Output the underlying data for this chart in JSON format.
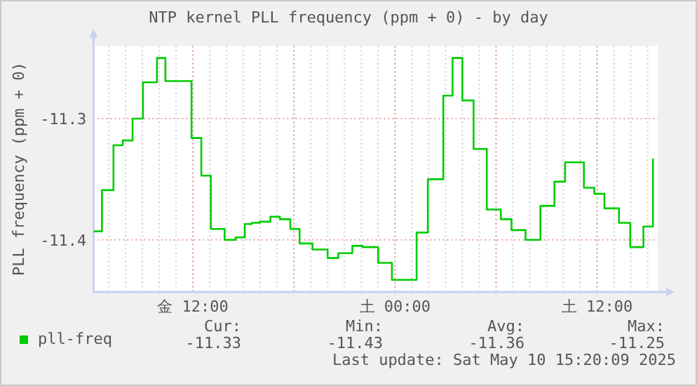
{
  "chart_data": {
    "type": "step",
    "title": "NTP kernel PLL frequency (ppm + 0) - by day",
    "ylabel": "PLL frequency (ppm + 0)",
    "x": [
      "2025-05-09T06:07",
      "2025-05-09T06:36",
      "2025-05-09T07:17",
      "2025-05-09T07:50",
      "2025-05-09T08:25",
      "2025-05-09T09:02",
      "2025-05-09T09:52",
      "2025-05-09T10:22",
      "2025-05-09T11:55",
      "2025-05-09T12:30",
      "2025-05-09T13:04",
      "2025-05-09T13:53",
      "2025-05-09T14:32",
      "2025-05-09T15:05",
      "2025-05-09T15:30",
      "2025-05-09T15:58",
      "2025-05-09T16:36",
      "2025-05-09T17:10",
      "2025-05-09T17:47",
      "2025-05-09T18:20",
      "2025-05-09T19:06",
      "2025-05-09T20:00",
      "2025-05-09T20:38",
      "2025-05-09T21:28",
      "2025-05-09T22:05",
      "2025-05-09T23:00",
      "2025-05-09T23:49",
      "2025-05-10T01:17",
      "2025-05-10T01:57",
      "2025-05-10T02:52",
      "2025-05-10T03:25",
      "2025-05-10T04:00",
      "2025-05-10T04:40",
      "2025-05-10T05:27",
      "2025-05-10T06:17",
      "2025-05-10T06:55",
      "2025-05-10T07:45",
      "2025-05-10T08:38",
      "2025-05-10T09:28",
      "2025-05-10T10:06",
      "2025-05-10T11:13",
      "2025-05-10T11:50",
      "2025-05-10T12:26",
      "2025-05-10T13:18",
      "2025-05-10T13:58",
      "2025-05-10T14:45",
      "2025-05-10T15:19"
    ],
    "series": [
      {
        "name": "pll-freq",
        "color": "#00cc00",
        "values": [
          -11.393,
          -11.359,
          -11.322,
          -11.318,
          -11.3,
          -11.27,
          -11.25,
          -11.269,
          -11.316,
          -11.347,
          -11.391,
          -11.4,
          -11.398,
          -11.387,
          -11.386,
          -11.385,
          -11.381,
          -11.383,
          -11.391,
          -11.403,
          -11.408,
          -11.415,
          -11.411,
          -11.405,
          -11.406,
          -11.419,
          -11.433,
          -11.394,
          -11.35,
          -11.281,
          -11.25,
          -11.285,
          -11.325,
          -11.375,
          -11.383,
          -11.392,
          -11.4,
          -11.372,
          -11.352,
          -11.336,
          -11.357,
          -11.362,
          -11.374,
          -11.386,
          -11.406,
          -11.389,
          -11.333
        ]
      }
    ],
    "xlim": [
      "2025-05-09T06:06",
      "2025-05-10T15:36"
    ],
    "ylim": [
      -11.443,
      -11.24
    ],
    "xticks": [
      {
        "value": "2025-05-09T12:00",
        "label": "金 12:00"
      },
      {
        "value": "2025-05-09T18:00",
        "label": null
      },
      {
        "value": "2025-05-10T00:00",
        "label": "土 00:00"
      },
      {
        "value": "2025-05-10T06:00",
        "label": null
      },
      {
        "value": "2025-05-10T12:00",
        "label": "土 12:00"
      }
    ],
    "yticks": [
      -11.4,
      -11.3
    ],
    "grid": true,
    "legend": "bottom",
    "annotations": [
      "Cur:",
      "Min:",
      "Avg:",
      "Max:",
      "-11.33",
      "-11.43",
      "-11.36",
      "-11.25",
      "Last update: Sat May 10 15:20:09 2025"
    ]
  }
}
